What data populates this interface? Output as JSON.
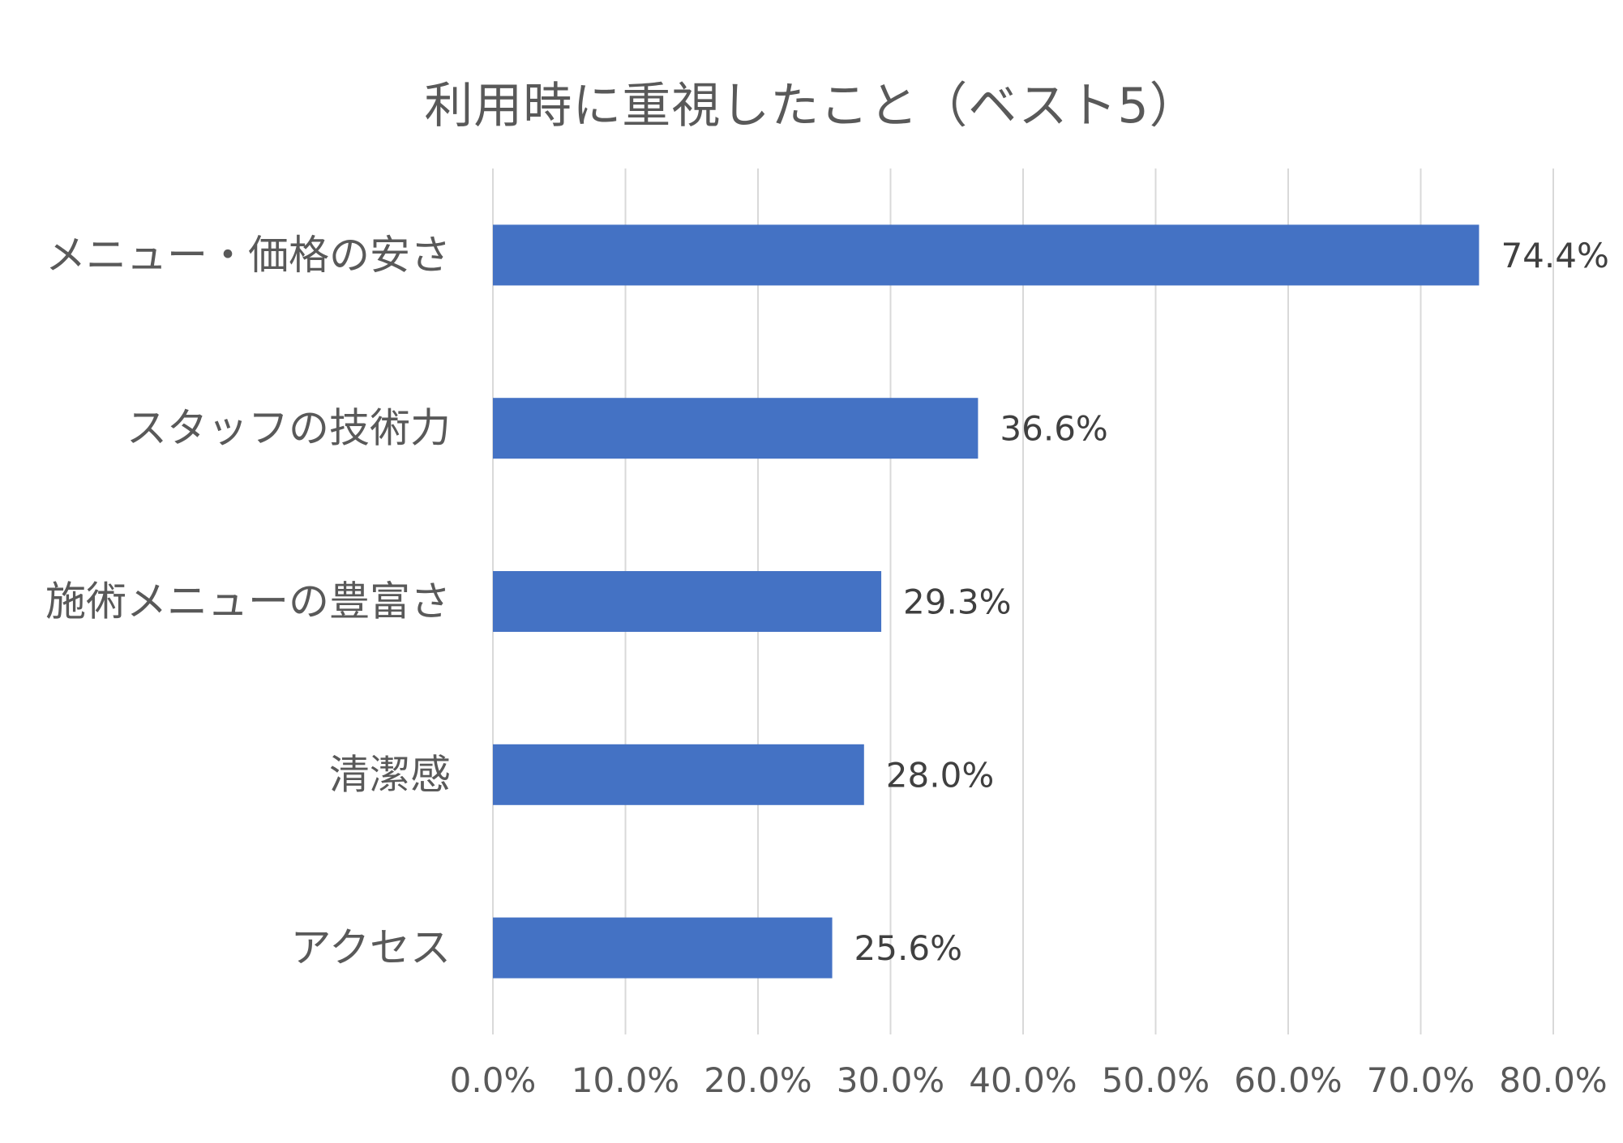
{
  "chart_data": {
    "type": "bar",
    "orientation": "horizontal",
    "title": "利用時に重視したこと（ベスト5）",
    "categories": [
      "メニュー・価格の安さ",
      "スタッフの技術力",
      "施術メニューの豊富さ",
      "清潔感",
      "アクセス"
    ],
    "values": [
      74.4,
      36.6,
      29.3,
      28.0,
      25.6
    ],
    "value_labels": [
      "74.4%",
      "36.6%",
      "29.3%",
      "28.0%",
      "25.6%"
    ],
    "x_ticks": [
      "0.0%",
      "10.0%",
      "20.0%",
      "30.0%",
      "40.0%",
      "50.0%",
      "60.0%",
      "70.0%",
      "80.0%"
    ],
    "xlim": [
      0,
      80
    ],
    "grid": "vertical",
    "legend": "none",
    "bar_color": "#4472C4",
    "grid_color": "#D9D9D9",
    "text_color": "#595959",
    "label_color": "#404040"
  }
}
